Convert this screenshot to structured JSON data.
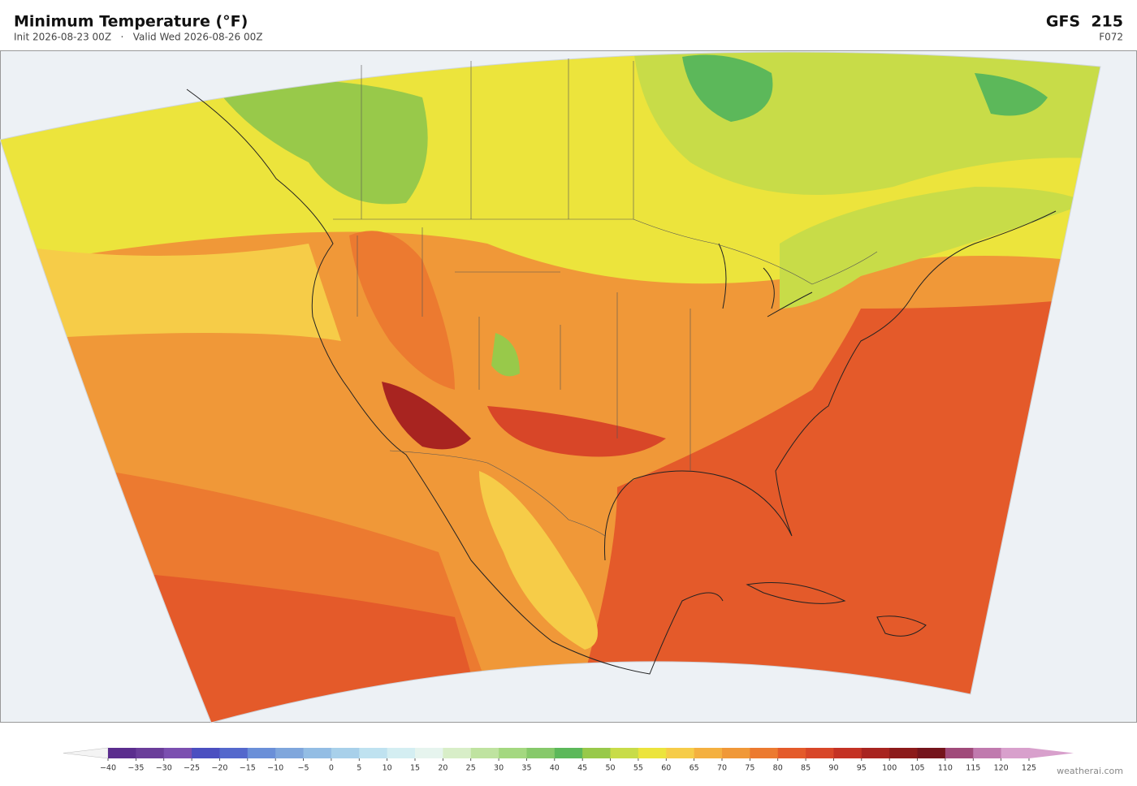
{
  "header": {
    "title": "Minimum Temperature  (°F)",
    "subtitle": "Init 2026-08-23 00Z   ·   Valid Wed 2026-08-26 00Z",
    "model": "GFS  215",
    "forecast_hour": "F072"
  },
  "colorbar": {
    "ticks": [
      {
        "value": -40,
        "label": "−40"
      },
      {
        "value": -35,
        "label": "−35"
      },
      {
        "value": -30,
        "label": "−30"
      },
      {
        "value": -25,
        "label": "−25"
      },
      {
        "value": -20,
        "label": "−20"
      },
      {
        "value": -15,
        "label": "−15"
      },
      {
        "value": -10,
        "label": "−10"
      },
      {
        "value": -5,
        "label": "−5"
      },
      0,
      5,
      10,
      15,
      20,
      25,
      30,
      35,
      40,
      45,
      50,
      55,
      60,
      65,
      70,
      75,
      80,
      85,
      90,
      95,
      100,
      105,
      110,
      115,
      120,
      125
    ],
    "colors": [
      "#5b2d8e",
      "#6a3d9a",
      "#7b4fb0",
      "#4b4fc0",
      "#5468cc",
      "#6a8fd8",
      "#7fa6dc",
      "#93bde4",
      "#a8d0ea",
      "#bfe2f0",
      "#d4eef2",
      "#e6f4ee",
      "#d8eec8",
      "#bfe3a0",
      "#a4d880",
      "#86c96a",
      "#5cb85a",
      "#98c94a",
      "#c8dc48",
      "#ece43c",
      "#f6cc48",
      "#f4b040",
      "#f09838",
      "#ec7a30",
      "#e45a2a",
      "#d84628",
      "#c43224",
      "#a82420",
      "#8c1a1a",
      "#74141c",
      "#a04a7a",
      "#c07aae",
      "#d8a0cc"
    ],
    "under_color": "#f4f4f4",
    "over_color": "#d8a0cc"
  },
  "footer": {
    "credit": "weatherai.com"
  }
}
